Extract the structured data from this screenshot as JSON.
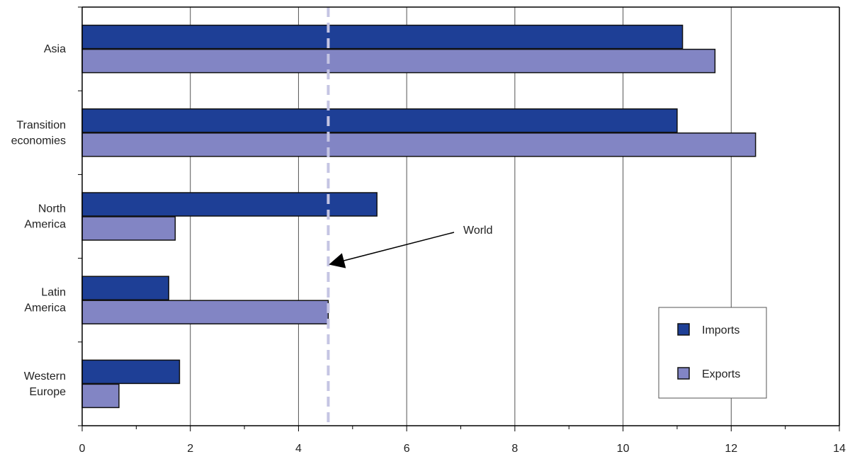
{
  "chart_data": {
    "type": "bar",
    "orientation": "horizontal",
    "title": "",
    "xlabel": "",
    "ylabel": "",
    "categories": [
      [
        "Asia"
      ],
      [
        "Transition",
        "economies"
      ],
      [
        "North",
        "America"
      ],
      [
        "Latin",
        "America"
      ],
      [
        "Western",
        "Europe"
      ]
    ],
    "series": [
      {
        "name": "Imports",
        "color": "#1e3f96",
        "values": [
          11.1,
          11.0,
          5.45,
          1.6,
          1.8
        ]
      },
      {
        "name": "Exports",
        "color": "#8285c4",
        "values": [
          11.7,
          12.45,
          1.72,
          4.55,
          0.68
        ]
      }
    ],
    "xlim": [
      0,
      14
    ],
    "xticks": [
      0,
      2,
      4,
      6,
      8,
      10,
      12,
      14
    ],
    "grid": "vertical",
    "legend_position": "bottom-right",
    "reference_line": {
      "label": "World",
      "value": 4.55,
      "color": "#c5c5e3",
      "style": "dashed"
    }
  }
}
